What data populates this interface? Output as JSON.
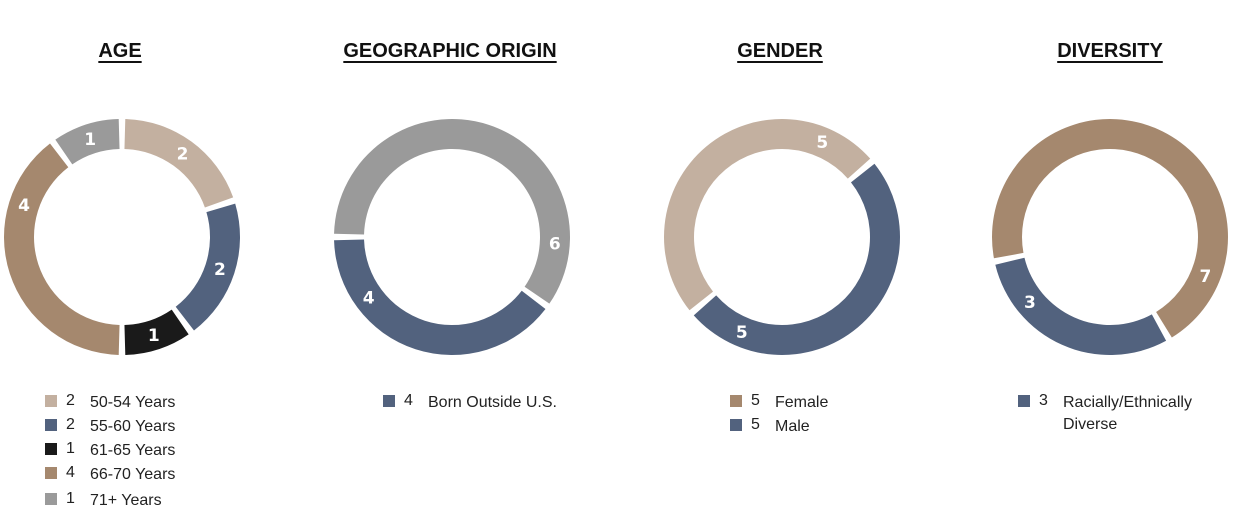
{
  "colors": {
    "tan": "#c3b0a0",
    "blue": "#52627e",
    "black": "#1a1a1a",
    "brown": "#a5886e",
    "gray": "#9a9a9a"
  },
  "chart_data": [
    {
      "type": "donut",
      "title": "AGE",
      "start_angle": 0,
      "slices": [
        {
          "label": "50-54 Years",
          "value": 2,
          "color": "#c3b0a0"
        },
        {
          "label": "55-60 Years",
          "value": 2,
          "color": "#52627e"
        },
        {
          "label": "61-65 Years",
          "value": 1,
          "color": "#1a1a1a"
        },
        {
          "label": "66-70 Years",
          "value": 4,
          "color": "#a5886e"
        },
        {
          "label": "71+ Years",
          "value": 1,
          "color": "#9a9a9a"
        }
      ],
      "legend": [
        {
          "count": "2",
          "label": "50-54 Years",
          "color": "#c3b0a0"
        },
        {
          "count": "2",
          "label": "55-60 Years",
          "color": "#52627e"
        },
        {
          "count": "1",
          "label": "61-65 Years",
          "color": "#1a1a1a"
        },
        {
          "count": "4",
          "label": "66-70 Years",
          "color": "#a5886e"
        },
        {
          "count": "1",
          "label": "71+ Years",
          "color": "#9a9a9a"
        }
      ]
    },
    {
      "type": "donut",
      "title": "GEOGRAPHIC ORIGIN",
      "start_angle": -90,
      "slices": [
        {
          "label": "",
          "value": 6,
          "color": "#9a9a9a"
        },
        {
          "label": "Born Outside U.S.",
          "value": 4,
          "color": "#52627e"
        }
      ],
      "legend": [
        {
          "count": "4",
          "label": "Born Outside U.S.",
          "color": "#52627e"
        }
      ]
    },
    {
      "type": "donut",
      "title": "GENDER",
      "start_angle": 50,
      "slices": [
        {
          "label": "Male",
          "value": 5,
          "color": "#52627e"
        },
        {
          "label": "Female",
          "value": 5,
          "color": "#c3b0a0"
        }
      ],
      "legend": [
        {
          "count": "5",
          "label": "Female",
          "color": "#a5886e"
        },
        {
          "count": "5",
          "label": "Male",
          "color": "#52627e"
        }
      ]
    },
    {
      "type": "donut",
      "title": "DIVERSITY",
      "start_angle": 150,
      "slices": [
        {
          "label": "Racially/Ethnically Diverse",
          "value": 3,
          "color": "#52627e"
        },
        {
          "label": "",
          "value": 7,
          "color": "#a5886e"
        }
      ],
      "legend": [
        {
          "count": "3",
          "label": "Racially/Ethnically Diverse",
          "color": "#52627e"
        }
      ]
    }
  ]
}
